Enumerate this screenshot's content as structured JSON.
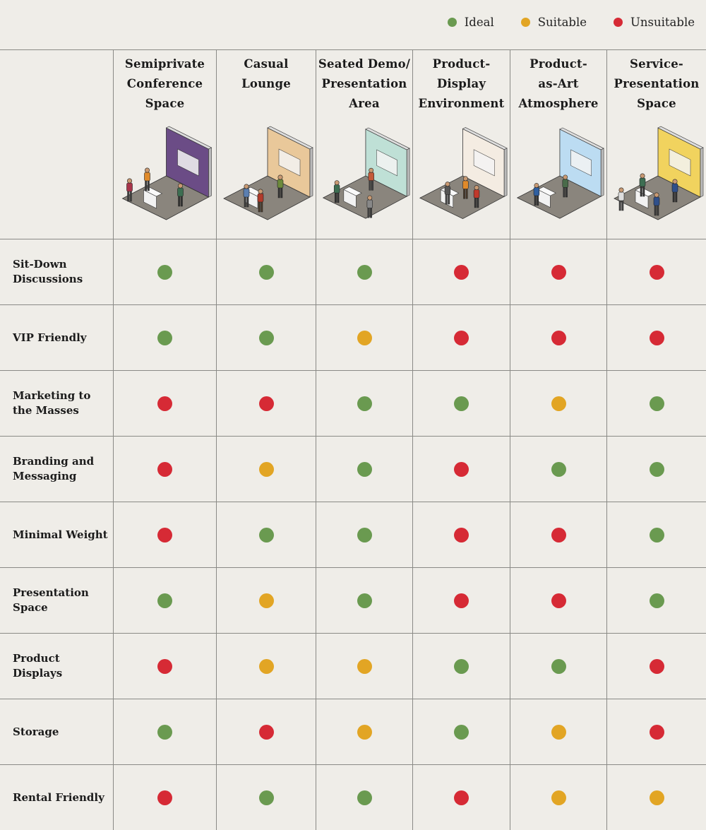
{
  "colors": {
    "ideal": "#6a9a50",
    "suitable": "#e2a524",
    "unsuitable": "#d62a35"
  },
  "legend": [
    {
      "key": "ideal",
      "label": "Ideal"
    },
    {
      "key": "suitable",
      "label": "Suitable"
    },
    {
      "key": "unsuitable",
      "label": "Unsuitable"
    }
  ],
  "columns": [
    {
      "title": "Semiprivate\nConference\nSpace",
      "illustration": "conference-booth-illustration",
      "wall": "#6b4c86"
    },
    {
      "title": "Casual\nLounge",
      "illustration": "lounge-booth-illustration",
      "wall": "#e9c89a"
    },
    {
      "title": "Seated Demo/\nPresentation\nArea",
      "illustration": "demo-booth-illustration",
      "wall": "#bfe0d6"
    },
    {
      "title": "Product-\nDisplay\nEnvironment",
      "illustration": "display-booth-illustration",
      "wall": "#f4ece2"
    },
    {
      "title": "Product-\nas-Art\nAtmosphere",
      "illustration": "art-booth-illustration",
      "wall": "#bcdcf2"
    },
    {
      "title": "Service-\nPresentation\nSpace",
      "illustration": "service-booth-illustration",
      "wall": "#f1d35e"
    }
  ],
  "rows": [
    {
      "label": "Sit-Down\nDiscussions",
      "ratings": [
        "ideal",
        "ideal",
        "ideal",
        "unsuitable",
        "unsuitable",
        "unsuitable"
      ]
    },
    {
      "label": "VIP Friendly",
      "ratings": [
        "ideal",
        "ideal",
        "suitable",
        "unsuitable",
        "unsuitable",
        "unsuitable"
      ]
    },
    {
      "label": "Marketing to\nthe Masses",
      "ratings": [
        "unsuitable",
        "unsuitable",
        "ideal",
        "ideal",
        "suitable",
        "ideal"
      ]
    },
    {
      "label": "Branding and\nMessaging",
      "ratings": [
        "unsuitable",
        "suitable",
        "ideal",
        "unsuitable",
        "ideal",
        "ideal"
      ]
    },
    {
      "label": "Minimal Weight",
      "ratings": [
        "unsuitable",
        "ideal",
        "ideal",
        "unsuitable",
        "unsuitable",
        "ideal"
      ]
    },
    {
      "label": "Presentation\nSpace",
      "ratings": [
        "ideal",
        "suitable",
        "ideal",
        "unsuitable",
        "unsuitable",
        "ideal"
      ]
    },
    {
      "label": "Product Displays",
      "ratings": [
        "unsuitable",
        "suitable",
        "suitable",
        "ideal",
        "ideal",
        "unsuitable"
      ]
    },
    {
      "label": "Storage",
      "ratings": [
        "ideal",
        "unsuitable",
        "suitable",
        "ideal",
        "suitable",
        "unsuitable"
      ]
    },
    {
      "label": "Rental Friendly",
      "ratings": [
        "unsuitable",
        "ideal",
        "ideal",
        "unsuitable",
        "suitable",
        "suitable"
      ]
    }
  ]
}
